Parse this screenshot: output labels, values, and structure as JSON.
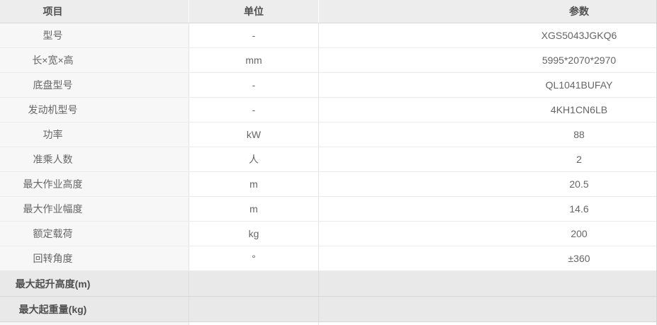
{
  "table": {
    "headers": {
      "item": "项目",
      "unit": "单位",
      "value": "参数"
    },
    "rows": [
      {
        "item": "型号",
        "unit": "-",
        "value": "XGS5043JGKQ6"
      },
      {
        "item": "长×宽×高",
        "unit": "mm",
        "value": "5995*2070*2970"
      },
      {
        "item": "底盘型号",
        "unit": "-",
        "value": "QL1041BUFAY"
      },
      {
        "item": "发动机型号",
        "unit": "-",
        "value": "4KH1CN6LB"
      },
      {
        "item": "功率",
        "unit": "kW",
        "value": "88"
      },
      {
        "item": "准乘人数",
        "unit": "人",
        "value": "2"
      },
      {
        "item": "最大作业高度",
        "unit": "m",
        "value": "20.5"
      },
      {
        "item": "最大作业幅度",
        "unit": "m",
        "value": "14.6"
      },
      {
        "item": "额定载荷",
        "unit": "kg",
        "value": "200"
      },
      {
        "item": "回转角度",
        "unit": "°",
        "value": "±360"
      }
    ],
    "section_rows": [
      {
        "item": "最大起升高度(m)",
        "unit": "",
        "value": ""
      },
      {
        "item": "最大起重量(kg)",
        "unit": "",
        "value": ""
      }
    ]
  },
  "colors": {
    "header_bg": "#ededed",
    "header_text": "#4f4f4f",
    "body_text": "#666666",
    "col1_bg": "#f7f7f7",
    "white_bg": "#ffffff",
    "row_border": "#ebebeb",
    "header_border": "#d8d8d8",
    "vline": "#e3e3e3",
    "section_bg": "#e9e9e9",
    "section_border": "#d6d6d6",
    "section_text": "#4f4f4f",
    "right_edge": "#d2d2d2"
  }
}
